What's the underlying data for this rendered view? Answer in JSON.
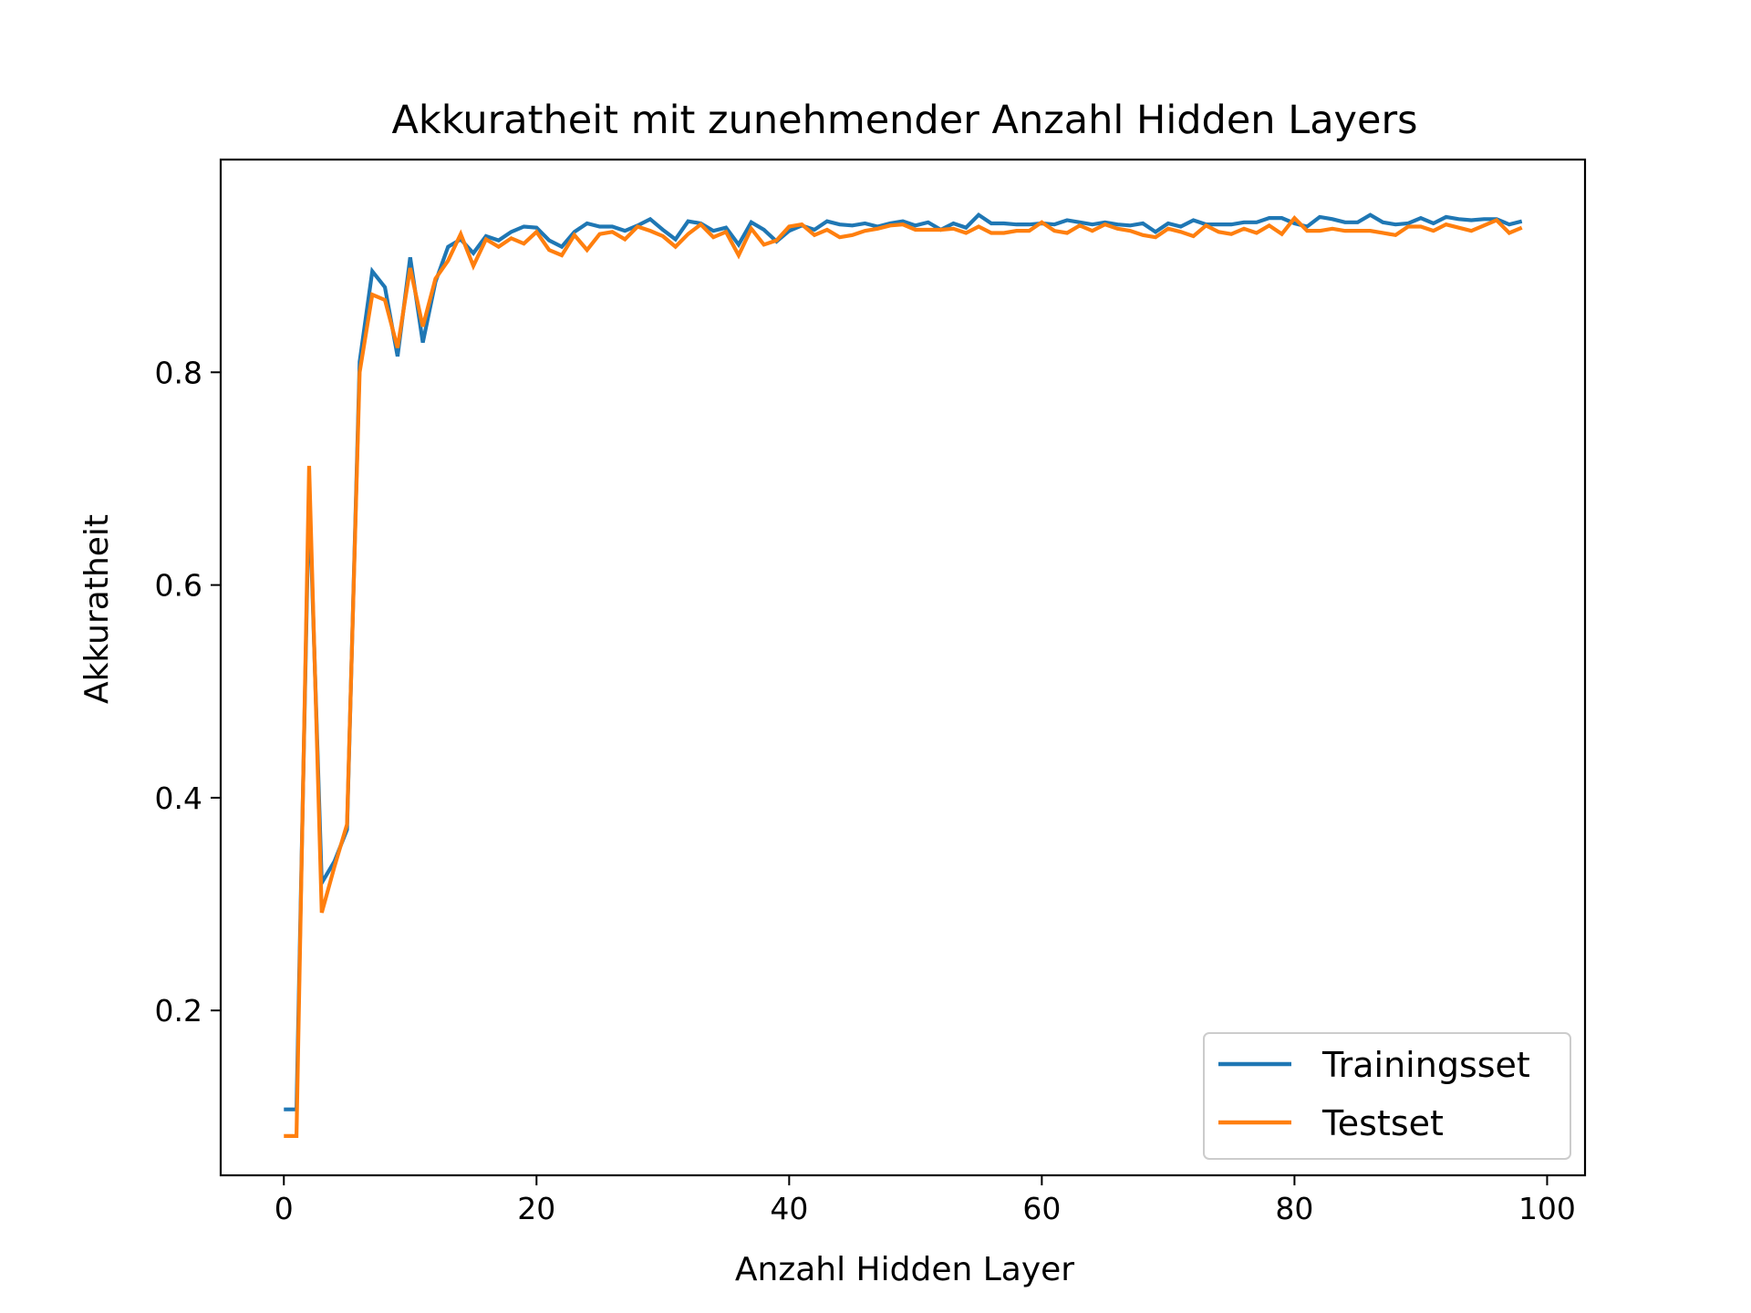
{
  "chart_data": {
    "type": "line",
    "title": "Akkuratheit mit zunehmender Anzahl Hidden Layers",
    "xlabel": "Anzahl Hidden Layer",
    "ylabel": "Akkuratheit",
    "xlim": [
      -5,
      103
    ],
    "ylim": [
      0.045,
      1.0
    ],
    "xticks": [
      0,
      20,
      40,
      60,
      80,
      100
    ],
    "xtick_labels": [
      "0",
      "20",
      "40",
      "60",
      "80",
      "100"
    ],
    "yticks": [
      0.2,
      0.4,
      0.6,
      0.8
    ],
    "ytick_labels": [
      "0.2",
      "0.4",
      "0.6",
      "0.8"
    ],
    "grid": false,
    "legend_position": "bottom-right",
    "x": [
      0,
      1,
      2,
      3,
      4,
      5,
      6,
      7,
      8,
      9,
      10,
      11,
      12,
      13,
      14,
      15,
      16,
      17,
      18,
      19,
      20,
      21,
      22,
      23,
      24,
      25,
      26,
      27,
      28,
      29,
      30,
      31,
      32,
      33,
      34,
      35,
      36,
      37,
      38,
      39,
      40,
      41,
      42,
      43,
      44,
      45,
      46,
      47,
      48,
      49,
      50,
      51,
      52,
      53,
      54,
      55,
      56,
      57,
      58,
      59,
      60,
      61,
      62,
      63,
      64,
      65,
      66,
      67,
      68,
      69,
      70,
      71,
      72,
      73,
      74,
      75,
      76,
      77,
      78,
      79,
      80,
      81,
      82,
      83,
      84,
      85,
      86,
      87,
      88,
      89,
      90,
      91,
      92,
      93,
      94,
      95,
      96,
      97,
      98
    ],
    "series": [
      {
        "name": "Trainingsset",
        "color": "#1f77b4",
        "values": [
          0.107,
          0.107,
          0.69,
          0.32,
          0.34,
          0.37,
          0.81,
          0.895,
          0.88,
          0.815,
          0.908,
          0.828,
          0.885,
          0.918,
          0.925,
          0.912,
          0.928,
          0.924,
          0.932,
          0.937,
          0.936,
          0.924,
          0.918,
          0.932,
          0.94,
          0.937,
          0.937,
          0.933,
          0.938,
          0.944,
          0.934,
          0.925,
          0.942,
          0.94,
          0.933,
          0.936,
          0.92,
          0.941,
          0.934,
          0.923,
          0.933,
          0.938,
          0.934,
          0.942,
          0.939,
          0.938,
          0.94,
          0.937,
          0.94,
          0.942,
          0.938,
          0.941,
          0.934,
          0.94,
          0.936,
          0.948,
          0.94,
          0.94,
          0.939,
          0.939,
          0.94,
          0.939,
          0.943,
          0.941,
          0.939,
          0.941,
          0.939,
          0.938,
          0.94,
          0.932,
          0.94,
          0.937,
          0.943,
          0.939,
          0.939,
          0.939,
          0.941,
          0.941,
          0.945,
          0.945,
          0.94,
          0.937,
          0.946,
          0.944,
          0.941,
          0.941,
          0.948,
          0.941,
          0.939,
          0.94,
          0.945,
          0.94,
          0.946,
          0.944,
          0.943,
          0.944,
          0.944,
          0.939,
          0.942
        ]
      },
      {
        "name": "Testset",
        "color": "#ff7f0e",
        "values": [
          0.082,
          0.082,
          0.712,
          0.292,
          0.335,
          0.375,
          0.8,
          0.873,
          0.868,
          0.823,
          0.898,
          0.843,
          0.888,
          0.905,
          0.93,
          0.9,
          0.925,
          0.918,
          0.926,
          0.921,
          0.932,
          0.915,
          0.91,
          0.929,
          0.915,
          0.93,
          0.932,
          0.925,
          0.937,
          0.933,
          0.928,
          0.918,
          0.93,
          0.939,
          0.927,
          0.932,
          0.91,
          0.935,
          0.92,
          0.924,
          0.937,
          0.939,
          0.929,
          0.934,
          0.927,
          0.929,
          0.933,
          0.935,
          0.938,
          0.939,
          0.934,
          0.934,
          0.934,
          0.935,
          0.931,
          0.937,
          0.931,
          0.931,
          0.933,
          0.933,
          0.941,
          0.933,
          0.931,
          0.938,
          0.933,
          0.939,
          0.935,
          0.933,
          0.929,
          0.927,
          0.935,
          0.932,
          0.928,
          0.938,
          0.932,
          0.93,
          0.935,
          0.931,
          0.938,
          0.93,
          0.945,
          0.933,
          0.933,
          0.935,
          0.933,
          0.933,
          0.933,
          0.931,
          0.929,
          0.937,
          0.937,
          0.933,
          0.939,
          0.936,
          0.933,
          0.938,
          0.943,
          0.931,
          0.936
        ]
      }
    ]
  }
}
